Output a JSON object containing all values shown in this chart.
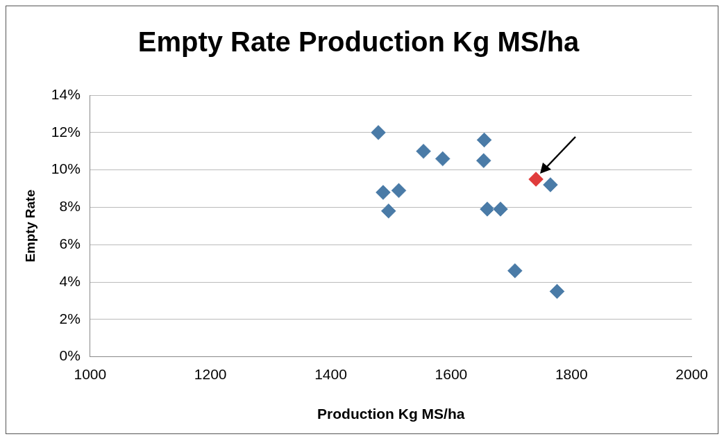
{
  "chart_data": {
    "type": "scatter",
    "title": "Empty Rate Production Kg MS/ha",
    "xlabel": "Production Kg MS/ha",
    "ylabel": "Empty Rate",
    "x": [
      1479,
      1487,
      1513,
      1496,
      1554,
      1586,
      1654,
      1655,
      1660,
      1682,
      1706,
      1741,
      1765,
      1776
    ],
    "values": [
      12.0,
      8.8,
      8.9,
      7.8,
      11.0,
      10.6,
      10.5,
      11.6,
      7.9,
      7.9,
      4.6,
      9.5,
      9.2,
      3.5
    ],
    "colors": [
      "#4a7ba7",
      "#4a7ba7",
      "#4a7ba7",
      "#4a7ba7",
      "#4a7ba7",
      "#4a7ba7",
      "#4a7ba7",
      "#4a7ba7",
      "#4a7ba7",
      "#4a7ba7",
      "#4a7ba7",
      "#e03c3c",
      "#4a7ba7",
      "#4a7ba7"
    ],
    "xlim": [
      1000,
      2000
    ],
    "xticks": [
      1000,
      1200,
      1400,
      1600,
      1800,
      2000
    ],
    "ylim": [
      0,
      14
    ],
    "yticks": [
      {
        "value": 0,
        "label": "0%"
      },
      {
        "value": 2,
        "label": "2%"
      },
      {
        "value": 4,
        "label": "4%"
      },
      {
        "value": 6,
        "label": "6%"
      },
      {
        "value": 8,
        "label": "8%"
      },
      {
        "value": 10,
        "label": "10%"
      },
      {
        "value": 12,
        "label": "12%"
      },
      {
        "value": 14,
        "label": "14%"
      }
    ],
    "grid": "y",
    "legend": false,
    "marker": "diamond"
  }
}
